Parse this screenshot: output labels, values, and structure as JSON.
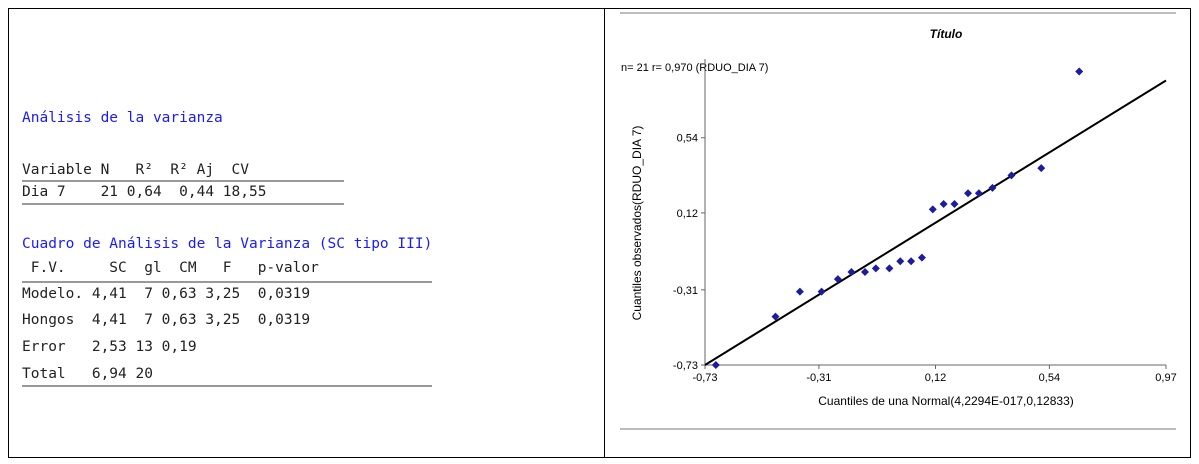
{
  "anova": {
    "title": "Análisis de la varianza",
    "summary_header": "Variable N   R²  R² Aj  CV",
    "summary_row": "Dia 7    21 0,64  0,44 18,55",
    "table_title": "Cuadro de Análisis de la Varianza (SC tipo III)",
    "table_header": " F.V.     SC  gl  CM   F   p-valor",
    "rows": [
      "Modelo. 4,41  7 0,63 3,25  0,0319",
      "Hongos  4,41  7 0,63 3,25  0,0319",
      "Error   2,53 13 0,19",
      "Total   6,94 20"
    ]
  },
  "chart_data": {
    "type": "scatter",
    "title": "Título",
    "annotation": "n= 21 r= 0,970 (RDUO_DIA 7)",
    "xlabel": "Cuantiles de una Normal(4,2294E-017,0,12833)",
    "ylabel": "Cuantiles observados(RDUO_DIA 7)",
    "xlim": [
      -0.73,
      0.97
    ],
    "ylim": [
      -0.73,
      0.98
    ],
    "xticks": [
      -0.73,
      -0.31,
      0.12,
      0.54,
      0.97
    ],
    "xtick_labels": [
      "-0,73",
      "-0,31",
      "0,12",
      "0,54",
      "0,97"
    ],
    "yticks": [
      -0.73,
      -0.31,
      0.12,
      0.54
    ],
    "ytick_labels": [
      "-0,73",
      "-0,31",
      "0,12",
      "0,54"
    ],
    "points": [
      [
        -0.69,
        -0.73
      ],
      [
        -0.47,
        -0.46
      ],
      [
        -0.38,
        -0.32
      ],
      [
        -0.3,
        -0.32
      ],
      [
        -0.24,
        -0.25
      ],
      [
        -0.19,
        -0.21
      ],
      [
        -0.14,
        -0.21
      ],
      [
        -0.1,
        -0.19
      ],
      [
        -0.05,
        -0.19
      ],
      [
        -0.01,
        -0.15
      ],
      [
        0.03,
        -0.15
      ],
      [
        0.07,
        -0.13
      ],
      [
        0.11,
        0.14
      ],
      [
        0.15,
        0.17
      ],
      [
        0.19,
        0.17
      ],
      [
        0.24,
        0.23
      ],
      [
        0.28,
        0.23
      ],
      [
        0.33,
        0.26
      ],
      [
        0.4,
        0.33
      ],
      [
        0.51,
        0.37
      ],
      [
        0.65,
        0.91
      ]
    ],
    "fit_line": [
      [
        -0.73,
        -0.73
      ],
      [
        0.97,
        0.86
      ]
    ],
    "point_color": "#1c1c9c",
    "line_color": "#000000"
  }
}
